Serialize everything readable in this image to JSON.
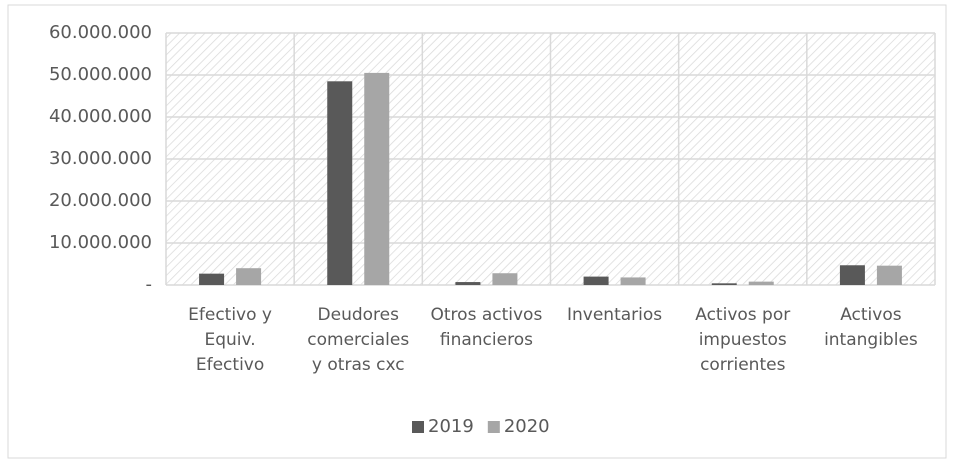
{
  "chart_data": {
    "type": "bar",
    "categories": [
      "Efectivo y\nEquiv.\nEfectivo",
      "Deudores\ncomerciales\ny otras cxc",
      "Otros activos\nfinancieros",
      "Inventarios",
      "Activos por\nimpuestos\ncorrientes",
      "Activos\nintangibles"
    ],
    "series": [
      {
        "name": "2019",
        "color": "#595959",
        "values": [
          2700000,
          48500000,
          700000,
          2000000,
          400000,
          4700000
        ]
      },
      {
        "name": "2020",
        "color": "#a6a6a6",
        "values": [
          4000000,
          50500000,
          2800000,
          1800000,
          800000,
          4600000
        ]
      }
    ],
    "ylim": [
      0,
      60000000
    ],
    "yticks": [
      {
        "value": 0,
        "label": "-"
      },
      {
        "value": 10000000,
        "label": "10.000.000"
      },
      {
        "value": 20000000,
        "label": "20.000.000"
      },
      {
        "value": 30000000,
        "label": "30.000.000"
      },
      {
        "value": 40000000,
        "label": "40.000.000"
      },
      {
        "value": 50000000,
        "label": "50.000.000"
      },
      {
        "value": 60000000,
        "label": "60.000.000"
      }
    ],
    "grid": true,
    "legend": "bottom"
  }
}
